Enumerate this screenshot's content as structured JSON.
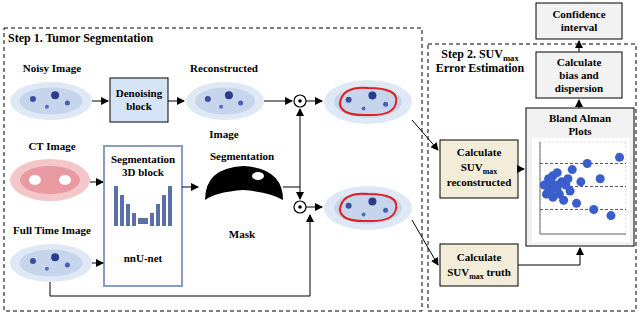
{
  "step1": {
    "title": "Step 1. Tumor Segmentation",
    "noisy": "Noisy Image",
    "denoising": [
      "Denoising",
      "block"
    ],
    "reconstructed": [
      "Reconstructed",
      "Image"
    ],
    "ct": "CT Image",
    "segmentation_block": [
      "Segmentation",
      "3D block"
    ],
    "network": "nnU-net",
    "full_time": "Full Time Image",
    "segmentation": "Segmentation",
    "mask": "Mask"
  },
  "step2": {
    "title": [
      {
        "text": "Step 2. SUV",
        "sub": "max"
      },
      "Error Estimation"
    ],
    "reconstructed_box": [
      "Calculate",
      {
        "text": "SUV",
        "sub": "max"
      },
      "reconstructed"
    ],
    "truth_box": [
      "Calculate",
      {
        "text": "SUV",
        "sub": "max",
        "rest": " truth"
      }
    ],
    "bland_altman_box": [
      "Bland Alman",
      "Plots"
    ],
    "bias_box": [
      "Calculate",
      "bias and",
      "dispersion"
    ],
    "confidence_box": [
      "Confidence",
      "interval"
    ]
  },
  "chart_data": {
    "type": "scatter",
    "x": [
      2,
      3,
      4,
      4,
      5,
      5,
      6,
      6,
      7,
      8,
      8,
      9,
      10,
      11,
      12,
      13,
      14,
      15,
      17,
      19,
      22,
      25,
      28,
      33,
      37
    ],
    "values": [
      1,
      -2,
      3,
      0,
      -1,
      2,
      4,
      -3,
      1,
      0,
      5,
      -2,
      2,
      -4,
      1,
      3,
      -1,
      6,
      -5,
      2,
      8,
      -7,
      3,
      -9,
      10
    ],
    "color": "#3a5fcd",
    "xlim": [
      0,
      40
    ],
    "xticks": [
      0,
      10,
      20,
      30,
      40
    ],
    "ylim": [
      -15,
      15
    ],
    "yticks": [
      -15,
      -10,
      -5,
      0,
      5,
      10,
      15
    ],
    "reference_lines": [
      -7,
      0.5,
      8
    ],
    "grid": true,
    "tick_labels": false
  }
}
